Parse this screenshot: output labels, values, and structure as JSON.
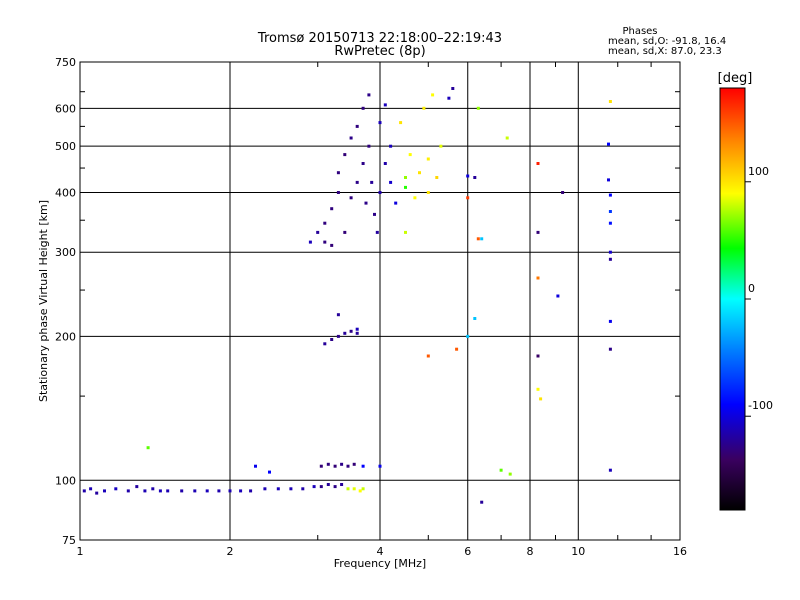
{
  "chart_data": {
    "type": "scatter",
    "title": "Tromsø 20150713 22:18:00–22:19:43",
    "subtitle": "RwPretec (8p)",
    "xlabel": "Frequency [MHz]",
    "ylabel": "Stationary phase Virtual Height [km]",
    "x_scale": "log",
    "y_scale": "log",
    "xlim": [
      1,
      16
    ],
    "ylim": [
      75,
      750
    ],
    "grid": true,
    "x_ticks": [
      1,
      2,
      4,
      6,
      8,
      10,
      16
    ],
    "x_tick_labels": [
      "1",
      "2",
      "4",
      "6",
      "8",
      "10",
      "16"
    ],
    "y_ticks": [
      75,
      100,
      200,
      300,
      400,
      500,
      600,
      750
    ],
    "y_tick_labels": [
      "75",
      "100",
      "200",
      "300",
      "400",
      "500",
      "600",
      "750"
    ],
    "legend_header": "Phases",
    "legend_lines": [
      "mean, sd,O: -91.8, 16.4",
      "mean, sd,X:  87.0, 23.3"
    ],
    "colorbar": {
      "label": "[deg]",
      "range": [
        -180,
        180
      ],
      "ticks": [
        100,
        0,
        -100
      ],
      "tick_labels": [
        "100",
        "0",
        "-100"
      ]
    },
    "series": [
      {
        "points": [
          [
            1.02,
            95,
            -115
          ],
          [
            1.05,
            96,
            -112
          ],
          [
            1.08,
            94,
            -118
          ],
          [
            1.12,
            95,
            -110
          ],
          [
            1.18,
            96,
            -108
          ],
          [
            1.25,
            95,
            -115
          ],
          [
            1.3,
            97,
            -118
          ],
          [
            1.35,
            95,
            -112
          ],
          [
            1.4,
            96,
            -115
          ],
          [
            1.45,
            95,
            -110
          ],
          [
            1.5,
            95,
            -112
          ],
          [
            1.6,
            95,
            -115
          ],
          [
            1.7,
            95,
            -112
          ],
          [
            1.8,
            95,
            -110
          ],
          [
            1.9,
            95,
            -114
          ],
          [
            2.0,
            95,
            -112
          ],
          [
            2.1,
            95,
            -110
          ],
          [
            2.2,
            95,
            -115
          ],
          [
            2.35,
            96,
            -112
          ],
          [
            2.5,
            96,
            -110
          ],
          [
            2.65,
            96,
            -112
          ],
          [
            2.8,
            96,
            -115
          ],
          [
            2.95,
            97,
            -110
          ],
          [
            1.37,
            117,
            60
          ],
          [
            2.25,
            107,
            -95
          ],
          [
            2.4,
            104,
            -90
          ]
        ]
      },
      {
        "points": [
          [
            3.05,
            97,
            -125
          ],
          [
            3.15,
            98,
            -120
          ],
          [
            3.25,
            97,
            -125
          ],
          [
            3.35,
            98,
            -120
          ],
          [
            3.05,
            107,
            -130
          ],
          [
            3.15,
            108,
            -128
          ],
          [
            3.25,
            107,
            -130
          ],
          [
            3.35,
            108,
            -125
          ],
          [
            3.45,
            107,
            -128
          ],
          [
            3.55,
            108,
            -130
          ],
          [
            3.7,
            107,
            -90
          ],
          [
            4.0,
            107,
            -95
          ],
          [
            3.45,
            96,
            80
          ],
          [
            3.55,
            96,
            85
          ],
          [
            3.65,
            95,
            90
          ],
          [
            3.7,
            96,
            80
          ]
        ]
      },
      {
        "points": [
          [
            3.2,
            197,
            -125
          ],
          [
            3.3,
            200,
            -125
          ],
          [
            3.4,
            203,
            -120
          ],
          [
            3.5,
            205,
            -125
          ],
          [
            3.6,
            203,
            -120
          ],
          [
            3.3,
            222,
            -120
          ],
          [
            3.1,
            193,
            -120
          ],
          [
            3.6,
            207,
            -110
          ]
        ]
      },
      {
        "points": [
          [
            2.9,
            315,
            -110
          ],
          [
            3.0,
            330,
            -120
          ],
          [
            3.1,
            315,
            -128
          ],
          [
            3.2,
            310,
            -130
          ],
          [
            3.1,
            345,
            -128
          ],
          [
            3.2,
            370,
            -128
          ],
          [
            3.3,
            400,
            -128
          ],
          [
            3.4,
            330,
            -130
          ],
          [
            3.3,
            440,
            -128
          ],
          [
            3.4,
            480,
            -130
          ],
          [
            3.5,
            520,
            -125
          ],
          [
            3.5,
            390,
            -128
          ],
          [
            3.6,
            550,
            -128
          ],
          [
            3.6,
            420,
            -125
          ],
          [
            3.7,
            600,
            -128
          ],
          [
            3.7,
            460,
            -125
          ],
          [
            3.8,
            640,
            -125
          ],
          [
            3.8,
            500,
            -128
          ],
          [
            3.75,
            380,
            -125
          ],
          [
            3.85,
            420,
            -120
          ],
          [
            3.9,
            360,
            -125
          ],
          [
            4.0,
            560,
            -110
          ],
          [
            4.0,
            400,
            -115
          ],
          [
            4.2,
            420,
            -105
          ],
          [
            4.2,
            500,
            -110
          ],
          [
            4.3,
            380,
            -100
          ],
          [
            4.1,
            610,
            -110
          ],
          [
            4.1,
            460,
            -115
          ],
          [
            3.95,
            330,
            -118
          ]
        ]
      },
      {
        "points": [
          [
            4.6,
            480,
            90
          ],
          [
            4.8,
            440,
            100
          ],
          [
            5.0,
            470,
            95
          ],
          [
            5.2,
            430,
            105
          ],
          [
            4.9,
            600,
            95
          ],
          [
            5.1,
            640,
            90
          ],
          [
            5.3,
            500,
            85
          ],
          [
            4.5,
            430,
            70
          ],
          [
            4.4,
            560,
            100
          ],
          [
            4.7,
            390,
            90
          ],
          [
            5.0,
            400,
            100
          ],
          [
            4.5,
            410,
            50
          ],
          [
            5.5,
            630,
            -110
          ],
          [
            5.6,
            660,
            -120
          ],
          [
            6.3,
            600,
            70
          ],
          [
            7.2,
            520,
            80
          ],
          [
            7.0,
            105,
            60
          ],
          [
            7.3,
            103,
            70
          ],
          [
            8.3,
            155,
            90
          ],
          [
            8.4,
            148,
            100
          ],
          [
            11.6,
            620,
            100
          ],
          [
            4.5,
            330,
            80
          ]
        ]
      },
      {
        "points": [
          [
            6.0,
            433,
            -100
          ],
          [
            6.2,
            430,
            -120
          ],
          [
            6.3,
            320,
            150
          ],
          [
            6.0,
            390,
            160
          ],
          [
            6.4,
            320,
            -20
          ],
          [
            6.2,
            218,
            -20
          ],
          [
            6.4,
            90,
            -120
          ],
          [
            6.0,
            200,
            -20
          ],
          [
            5.7,
            188,
            150
          ],
          [
            5.0,
            182,
            150
          ],
          [
            8.3,
            460,
            170
          ],
          [
            8.3,
            330,
            -130
          ],
          [
            8.3,
            265,
            140
          ],
          [
            8.3,
            182,
            -135
          ],
          [
            9.3,
            400,
            -130
          ],
          [
            9.1,
            243,
            -100
          ],
          [
            11.5,
            505,
            -90
          ],
          [
            11.5,
            425,
            -100
          ],
          [
            11.6,
            395,
            -90
          ],
          [
            11.6,
            365,
            -70
          ],
          [
            11.6,
            345,
            -85
          ],
          [
            11.6,
            290,
            -120
          ],
          [
            11.6,
            215,
            -95
          ],
          [
            11.6,
            188,
            -125
          ],
          [
            11.6,
            300,
            -105
          ],
          [
            11.6,
            105,
            -110
          ]
        ]
      }
    ]
  }
}
